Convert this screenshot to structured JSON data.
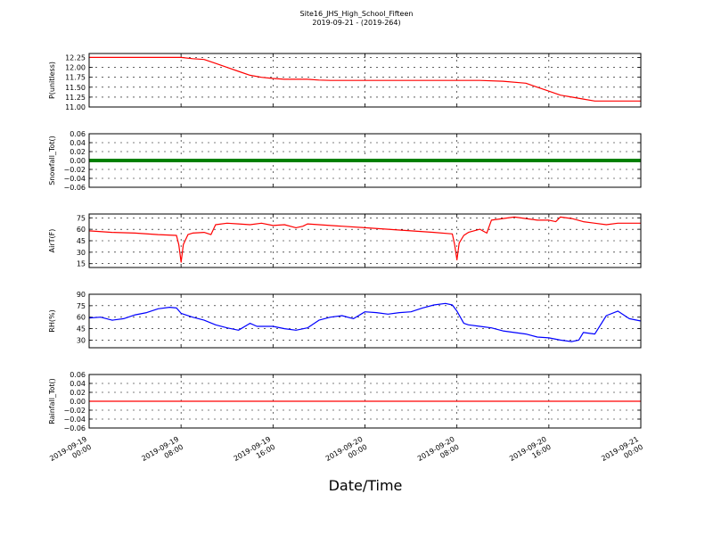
{
  "chart_data": {
    "title": [
      "Site16_JHS_High_School_Fifteen",
      "2019-09-21 - (2019-264)"
    ],
    "xlabel": "Date/Time",
    "x_ticks": [
      [
        "2019-09-19",
        "00:00"
      ],
      [
        "2019-09-19",
        "08:00"
      ],
      [
        "2019-09-19",
        "16:00"
      ],
      [
        "2019-09-20",
        "00:00"
      ],
      [
        "2019-09-20",
        "08:00"
      ],
      [
        "2019-09-20",
        "16:00"
      ],
      [
        "2019-09-21",
        "00:00"
      ]
    ],
    "x_range_hours": [
      0,
      48
    ],
    "grid": true,
    "panels": [
      {
        "type": "line",
        "ylabel": "P(unitless)",
        "ylim": [
          11.0,
          12.35
        ],
        "yticks": [
          "11.00",
          "11.25",
          "11.50",
          "11.75",
          "12.00",
          "12.25"
        ],
        "ytick_values": [
          11.0,
          11.25,
          11.5,
          11.75,
          12.0,
          12.25
        ],
        "color": "#ff0000",
        "x": [
          0,
          5,
          8,
          9,
          10,
          11,
          12,
          13,
          14,
          15,
          16,
          17,
          18,
          19,
          20,
          21,
          22,
          24,
          26,
          30,
          34,
          36,
          38,
          39,
          40,
          41,
          42,
          43,
          44,
          45,
          46,
          48
        ],
        "y": [
          12.25,
          12.25,
          12.25,
          12.22,
          12.2,
          12.1,
          12.0,
          11.9,
          11.8,
          11.75,
          11.72,
          11.7,
          11.7,
          11.7,
          11.68,
          11.67,
          11.67,
          11.67,
          11.67,
          11.67,
          11.67,
          11.65,
          11.6,
          11.5,
          11.4,
          11.3,
          11.25,
          11.2,
          11.15,
          11.15,
          11.15,
          11.15
        ]
      },
      {
        "type": "line",
        "ylabel": "Snowfall_Tot()",
        "ylim": [
          -0.06,
          0.06
        ],
        "yticks": [
          "0.06",
          "0.04",
          "0.02",
          "0.00",
          "−0.02",
          "−0.04",
          "−0.06"
        ],
        "ytick_values": [
          0.06,
          0.04,
          0.02,
          0.0,
          -0.02,
          -0.04,
          -0.06
        ],
        "color": "#008000",
        "thick": true,
        "x": [
          0,
          48
        ],
        "y": [
          0,
          0
        ]
      },
      {
        "type": "line",
        "ylabel": "AirT(F)",
        "ylim": [
          10,
          80
        ],
        "yticks": [
          "15",
          "30",
          "45",
          "60",
          "75"
        ],
        "ytick_values": [
          15,
          30,
          45,
          60,
          75
        ],
        "color": "#ff0000",
        "x": [
          0,
          2,
          4,
          6,
          7.6,
          7.8,
          8.0,
          8.2,
          8.6,
          9,
          10,
          10.6,
          11,
          12,
          13,
          14,
          15,
          16,
          17,
          18,
          18.6,
          19,
          20,
          22,
          24,
          26,
          28,
          30,
          31.6,
          31.8,
          32.0,
          32.2,
          32.6,
          33,
          34,
          34.6,
          35,
          36,
          37,
          38,
          39,
          40,
          40.6,
          41,
          42,
          43,
          44,
          45,
          46,
          47,
          48
        ],
        "y": [
          58,
          56,
          55,
          53,
          52,
          40,
          17,
          40,
          53,
          55,
          56,
          53,
          66,
          68,
          67,
          66,
          68,
          65,
          66,
          62,
          64,
          67,
          66,
          64,
          62,
          60,
          58,
          56,
          54,
          40,
          20,
          42,
          52,
          56,
          60,
          55,
          72,
          74,
          76,
          74,
          72,
          72,
          70,
          76,
          74,
          70,
          68,
          66,
          68,
          68,
          68
        ]
      },
      {
        "type": "line",
        "ylabel": "RH(%)",
        "ylim": [
          20,
          90
        ],
        "yticks": [
          "30",
          "45",
          "60",
          "75",
          "90"
        ],
        "ytick_values": [
          30,
          45,
          60,
          75,
          90
        ],
        "color": "#0000ff",
        "x": [
          0,
          1,
          2,
          3,
          4,
          5,
          6,
          7,
          7.6,
          8,
          9,
          10,
          11,
          12,
          13,
          14,
          14.6,
          15,
          16,
          17,
          18,
          19,
          20,
          21,
          22,
          23,
          24,
          25,
          26,
          27,
          28,
          29,
          30,
          31,
          31.6,
          32,
          32.6,
          33,
          34,
          35,
          36,
          37,
          38,
          39,
          40,
          41,
          42,
          42.6,
          43,
          44,
          45,
          46,
          47,
          48
        ],
        "y": [
          59,
          60,
          56,
          58,
          63,
          66,
          71,
          73,
          72,
          65,
          60,
          56,
          50,
          46,
          43,
          52,
          48,
          48,
          48,
          45,
          43,
          46,
          56,
          60,
          62,
          58,
          67,
          66,
          64,
          66,
          67,
          72,
          76,
          78,
          76,
          68,
          52,
          50,
          48,
          46,
          42,
          40,
          38,
          34,
          33,
          30,
          28,
          30,
          40,
          38,
          62,
          68,
          58,
          55
        ]
      },
      {
        "type": "line",
        "ylabel": "Rainfall_Tot()",
        "ylim": [
          -0.06,
          0.06
        ],
        "yticks": [
          "0.06",
          "0.04",
          "0.02",
          "0.00",
          "−0.02",
          "−0.04",
          "−0.06"
        ],
        "ytick_values": [
          0.06,
          0.04,
          0.02,
          0.0,
          -0.02,
          -0.04,
          -0.06
        ],
        "color": "#ff0000",
        "x": [
          0,
          48
        ],
        "y": [
          0,
          0
        ]
      }
    ]
  }
}
